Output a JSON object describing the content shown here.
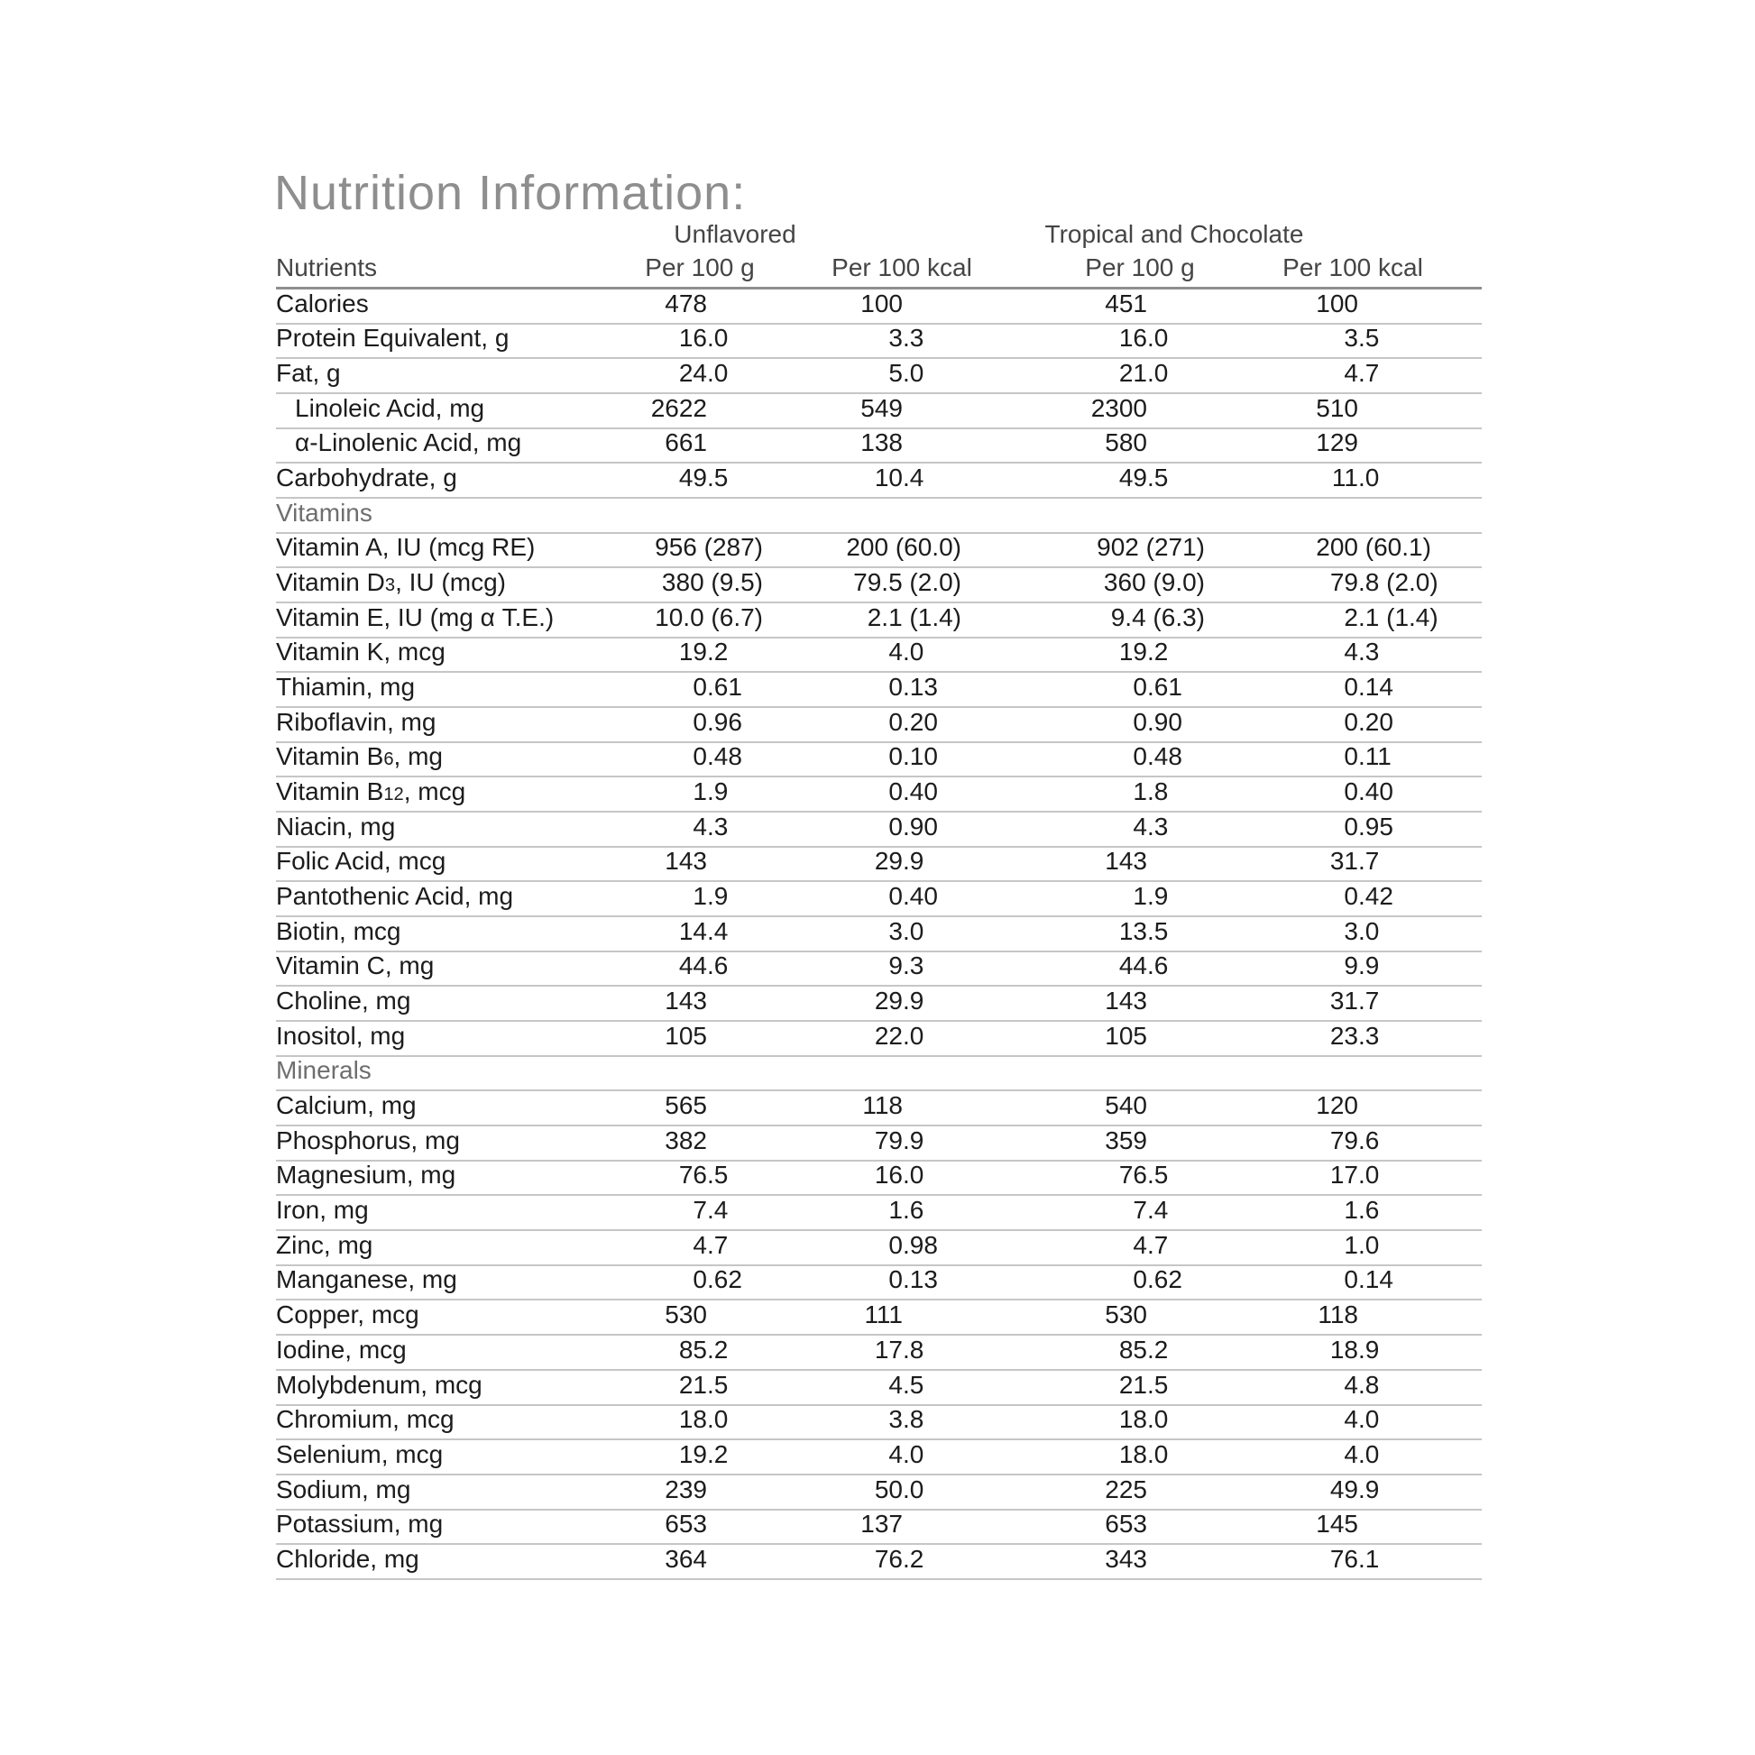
{
  "title": "Nutrition Information:",
  "table": {
    "group_headers": [
      {
        "label": "Unflavored"
      },
      {
        "label": "Tropical and Chocolate"
      }
    ],
    "col_headers": [
      "Nutrients",
      "Per 100 g",
      "Per 100 kcal",
      "Per 100 g",
      "Per 100 kcal"
    ],
    "rows": [
      {
        "type": "data",
        "label": "Calories",
        "values": [
          "478",
          "100",
          "451",
          "100"
        ]
      },
      {
        "type": "data",
        "label": "Protein Equivalent, g",
        "values": [
          "16.0",
          "3.3",
          "16.0",
          "3.5"
        ]
      },
      {
        "type": "data",
        "label": "Fat, g",
        "values": [
          "24.0",
          "5.0",
          "21.0",
          "4.7"
        ]
      },
      {
        "type": "data",
        "indent": true,
        "label": "Linoleic Acid, mg",
        "values": [
          "2622",
          "549",
          "2300",
          "510"
        ]
      },
      {
        "type": "data",
        "indent": true,
        "label": "α-Linolenic Acid, mg",
        "values": [
          "661",
          "138",
          "580",
          "129"
        ]
      },
      {
        "type": "data",
        "label": "Carbohydrate, g",
        "values": [
          "49.5",
          "10.4",
          "49.5",
          "11.0"
        ]
      },
      {
        "type": "section",
        "label": "Vitamins"
      },
      {
        "type": "data",
        "label": "Vitamin A, IU (mcg RE)",
        "values": [
          "956 (287)",
          "200 (60.0)",
          "902 (271)",
          "200 (60.1)"
        ]
      },
      {
        "type": "data",
        "label": "Vitamin D~3~, IU (mcg)",
        "values": [
          "380 (9.5)",
          "79.5 (2.0)",
          "360 (9.0)",
          "79.8 (2.0)"
        ]
      },
      {
        "type": "data",
        "label": "Vitamin E, IU (mg α T.E.)",
        "values": [
          "10.0 (6.7)",
          "2.1 (1.4)",
          "9.4 (6.3)",
          "2.1 (1.4)"
        ]
      },
      {
        "type": "data",
        "label": "Vitamin K, mcg",
        "values": [
          "19.2",
          "4.0",
          "19.2",
          "4.3"
        ]
      },
      {
        "type": "data",
        "label": "Thiamin, mg",
        "values": [
          "0.61",
          "0.13",
          "0.61",
          "0.14"
        ]
      },
      {
        "type": "data",
        "label": "Riboflavin, mg",
        "values": [
          "0.96",
          "0.20",
          "0.90",
          "0.20"
        ]
      },
      {
        "type": "data",
        "label": "Vitamin B~6~, mg",
        "values": [
          "0.48",
          "0.10",
          "0.48",
          "0.11"
        ]
      },
      {
        "type": "data",
        "label": "Vitamin B~12~, mcg",
        "values": [
          "1.9",
          "0.40",
          "1.8",
          "0.40"
        ]
      },
      {
        "type": "data",
        "label": "Niacin, mg",
        "values": [
          "4.3",
          "0.90",
          "4.3",
          "0.95"
        ]
      },
      {
        "type": "data",
        "label": "Folic Acid, mcg",
        "values": [
          "143",
          "29.9",
          "143",
          "31.7"
        ]
      },
      {
        "type": "data",
        "label": "Pantothenic Acid, mg",
        "values": [
          "1.9",
          "0.40",
          "1.9",
          "0.42"
        ]
      },
      {
        "type": "data",
        "label": "Biotin, mcg",
        "values": [
          "14.4",
          "3.0",
          "13.5",
          "3.0"
        ]
      },
      {
        "type": "data",
        "label": "Vitamin C, mg",
        "values": [
          "44.6",
          "9.3",
          "44.6",
          "9.9"
        ]
      },
      {
        "type": "data",
        "label": "Choline, mg",
        "values": [
          "143",
          "29.9",
          "143",
          "31.7"
        ]
      },
      {
        "type": "data",
        "label": "Inositol, mg",
        "values": [
          "105",
          "22.0",
          "105",
          "23.3"
        ]
      },
      {
        "type": "section",
        "label": "Minerals"
      },
      {
        "type": "data",
        "label": "Calcium, mg",
        "values": [
          "565",
          "118",
          "540",
          "120"
        ]
      },
      {
        "type": "data",
        "label": "Phosphorus, mg",
        "values": [
          "382",
          "79.9",
          "359",
          "79.6"
        ]
      },
      {
        "type": "data",
        "label": "Magnesium, mg",
        "values": [
          "76.5",
          "16.0",
          "76.5",
          "17.0"
        ]
      },
      {
        "type": "data",
        "label": "Iron, mg",
        "values": [
          "7.4",
          "1.6",
          "7.4",
          "1.6"
        ]
      },
      {
        "type": "data",
        "label": "Zinc, mg",
        "values": [
          "4.7",
          "0.98",
          "4.7",
          "1.0"
        ]
      },
      {
        "type": "data",
        "label": "Manganese, mg",
        "values": [
          "0.62",
          "0.13",
          "0.62",
          "0.14"
        ]
      },
      {
        "type": "data",
        "label": "Copper, mcg",
        "values": [
          "530",
          "111",
          "530",
          "118"
        ]
      },
      {
        "type": "data",
        "label": "Iodine, mcg",
        "values": [
          "85.2",
          "17.8",
          "85.2",
          "18.9"
        ]
      },
      {
        "type": "data",
        "label": "Molybdenum, mcg",
        "values": [
          "21.5",
          "4.5",
          "21.5",
          "4.8"
        ]
      },
      {
        "type": "data",
        "label": "Chromium, mcg",
        "values": [
          "18.0",
          "3.8",
          "18.0",
          "4.0"
        ]
      },
      {
        "type": "data",
        "label": "Selenium, mcg",
        "values": [
          "19.2",
          "4.0",
          "18.0",
          "4.0"
        ]
      },
      {
        "type": "data",
        "label": "Sodium, mg",
        "values": [
          "239",
          "50.0",
          "225",
          "49.9"
        ]
      },
      {
        "type": "data",
        "label": "Potassium, mg",
        "values": [
          "653",
          "137",
          "653",
          "145"
        ]
      },
      {
        "type": "data",
        "label": "Chloride, mg",
        "values": [
          "364",
          "76.2",
          "343",
          "76.1"
        ]
      }
    ]
  },
  "colors": {
    "title_gray": "#8e8e8e",
    "header_gray": "#454545",
    "section_gray": "#6e6e6e",
    "body_text": "#1c1c1c",
    "row_line": "#c6c6c6",
    "header_line": "#8f8f8f"
  }
}
